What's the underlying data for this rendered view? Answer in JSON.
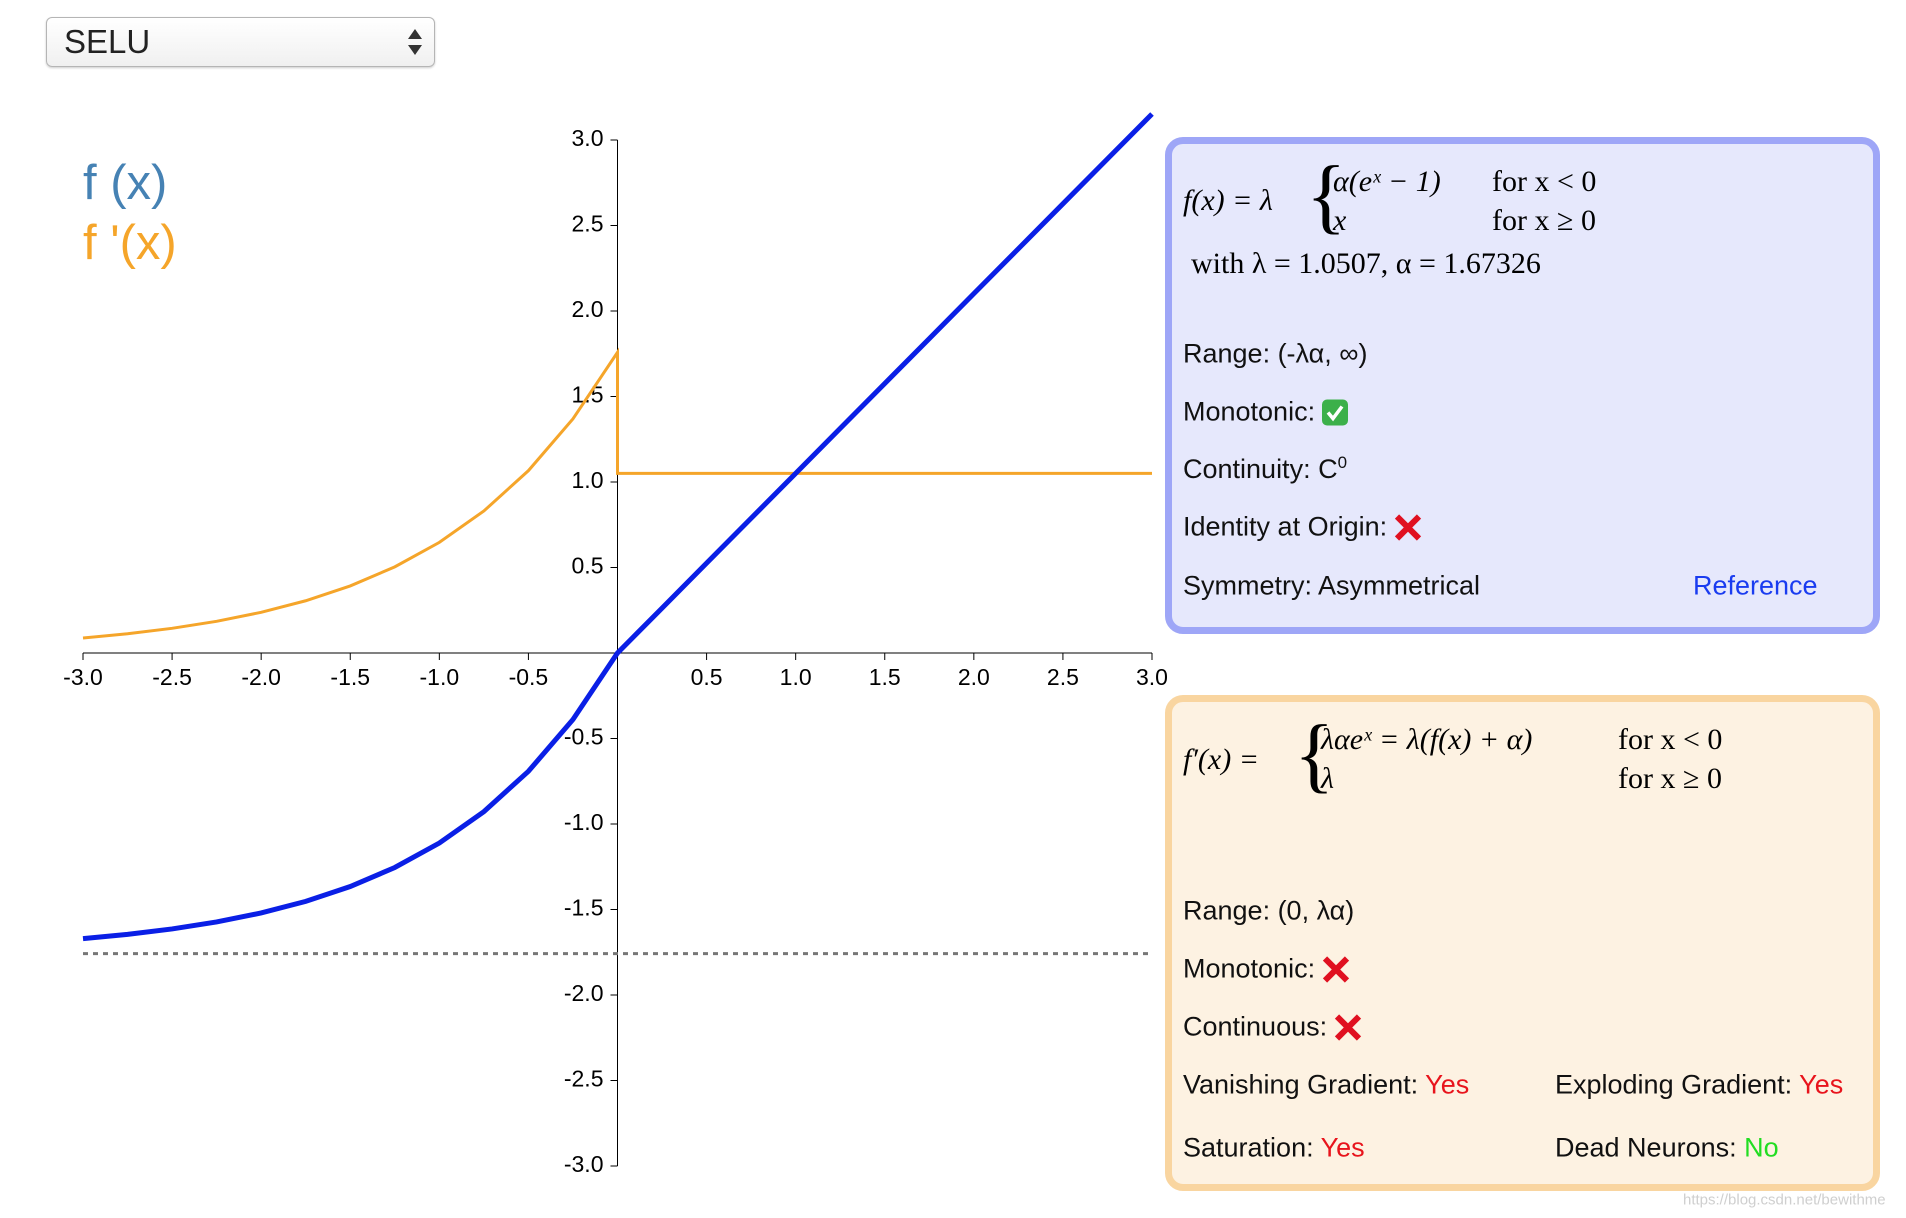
{
  "selector": "SELU",
  "chart_data": {
    "type": "line",
    "x": [
      -3,
      -2.75,
      -2.5,
      -2.25,
      -2,
      -1.75,
      -1.5,
      -1.25,
      -1,
      -0.75,
      -0.5,
      -0.25,
      0,
      0,
      0.25,
      0.5,
      0.75,
      1,
      1.25,
      1.5,
      1.75,
      2,
      2.25,
      2.5,
      2.75,
      3
    ],
    "series": [
      {
        "name": "f (x)",
        "color": "#0a1fe6",
        "legend_color": "#4682b4",
        "values": [
          -1.6706,
          -1.6457,
          -1.6138,
          -1.5728,
          -1.5202,
          -1.4526,
          -1.3658,
          -1.2544,
          -1.1113,
          -0.9276,
          -0.6918,
          -0.3889,
          0,
          0,
          0.2627,
          0.5254,
          0.788,
          1.0507,
          1.3134,
          1.5761,
          1.8387,
          2.1014,
          2.3641,
          2.6268,
          2.8894,
          3.1521
        ]
      },
      {
        "name": "f '(x)",
        "color": "#f5a52a",
        "legend_color": "#f5a52a",
        "values": [
          0.0875,
          0.1124,
          0.1443,
          0.1853,
          0.2379,
          0.3055,
          0.3923,
          0.5037,
          0.6468,
          0.8305,
          1.0663,
          1.3692,
          1.7581,
          1.0507,
          1.0507,
          1.0507,
          1.0507,
          1.0507,
          1.0507,
          1.0507,
          1.0507,
          1.0507,
          1.0507,
          1.0507,
          1.0507,
          1.0507
        ]
      }
    ],
    "asymptote": -1.7581,
    "xlim": [
      -3,
      3
    ],
    "ylim": [
      -3,
      3
    ],
    "xticks": [
      {
        "value": -3,
        "label": "-3.0"
      },
      -2.5,
      {
        "value": -2,
        "label": "-2.0"
      },
      -1.5,
      {
        "value": -1,
        "label": "-1.0"
      },
      -0.5,
      0.5,
      {
        "value": 1,
        "label": "1.0"
      },
      1.5,
      {
        "value": 2,
        "label": "2.0"
      },
      2.5,
      {
        "value": 3,
        "label": "3.0"
      }
    ],
    "yticks": [
      {
        "value": 3,
        "label": "3.0"
      },
      2.5,
      {
        "value": 2,
        "label": "2.0"
      },
      1.5,
      {
        "value": 1,
        "label": "1.0"
      },
      0.5,
      -0.5,
      {
        "value": -1,
        "label": "-1.0"
      },
      -1.5,
      {
        "value": -2,
        "label": "-2.0"
      },
      -2.5,
      {
        "value": -3,
        "label": "-3.0"
      }
    ]
  },
  "function_panel": {
    "lhs": "f(x) = λ",
    "case1": "α(eˣ − 1)",
    "cond1": "for x < 0",
    "case2": "x",
    "cond2": "for x ≥ 0",
    "params": "with λ = 1.0507, α = 1.67326",
    "range": "Range: (-λα, ∞)",
    "monotonic": "Monotonic:",
    "continuity": {
      "label": "Continuity: C",
      "sup": "0"
    },
    "identity": "Identity at Origin:",
    "symmetry": "Symmetry: Asymmetrical",
    "reference": "Reference"
  },
  "derivative_panel": {
    "lhs": "f′(x) =",
    "case1": "λαeˣ = λ(f(x) + α)",
    "cond1": "for x < 0",
    "case2": "λ",
    "cond2": "for x ≥ 0",
    "range": "Range: (0, λα)",
    "monotonic": "Monotonic:",
    "continuous": "Continuous:",
    "vanishing": {
      "label": "Vanishing Gradient:",
      "value": "Yes"
    },
    "exploding": {
      "label": "Exploding Gradient:",
      "value": "Yes"
    },
    "saturation": {
      "label": "Saturation:",
      "value": "Yes"
    },
    "dead_neurons": {
      "label": "Dead Neurons:",
      "value": "No"
    }
  },
  "watermark": "https://blog.csdn.net/bewithme"
}
